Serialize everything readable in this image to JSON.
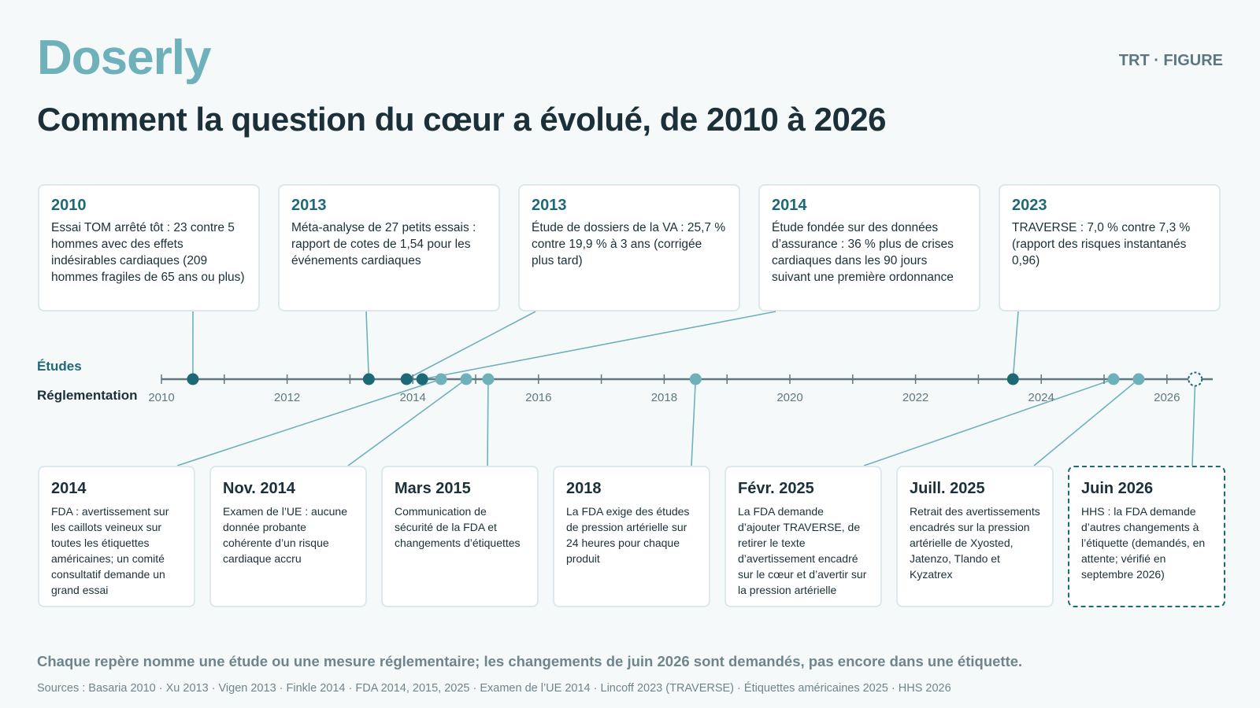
{
  "brand": "Doserly",
  "tag": "TRT · FIGURE",
  "title": "Comment la question du cœur a évolué, de 2010 à 2026",
  "lanes": {
    "studies": "Études",
    "regulation": "Réglementation"
  },
  "axis": {
    "years": [
      "2010",
      "2012",
      "2014",
      "2016",
      "2018",
      "2020",
      "2022",
      "2024",
      "2026"
    ]
  },
  "studies": [
    {
      "label": "2010",
      "text": "Essai TOM arrêté tôt : 23 contre 5 hommes avec des effets indésirables cardiaques (209 hommes fragiles de 65 ans ou plus)",
      "date": 2010.5
    },
    {
      "label": "2013",
      "text": "Méta-analyse de 27 petits essais : rapport de cotes de 1,54 pour les événements cardiaques",
      "date": 2013.3
    },
    {
      "label": "2013",
      "text": "Étude de dossiers de la VA : 25,7 % contre 19,9 % à 3 ans (corrigée plus tard)",
      "date": 2013.9
    },
    {
      "label": "2014",
      "text": "Étude fondée sur des données d’assurance : 36 % plus de crises cardiaques dans les 90 jours suivant une première ordonnance",
      "date": 2014.15
    },
    {
      "label": "2023",
      "text": "TRAVERSE : 7,0 % contre 7,3 % (rapport des risques instantanés 0,96)",
      "date": 2023.55
    }
  ],
  "regulation": [
    {
      "label": "2014",
      "text": "FDA : avertissement sur les caillots veineux sur toutes les étiquettes américaines; un comité consultatif demande un grand essai",
      "date": 2014.45,
      "pending": false
    },
    {
      "label": "Nov. 2014",
      "text": "Examen de l’UE : aucune donnée probante cohérente d’un risque cardiaque accru",
      "date": 2014.85,
      "pending": false
    },
    {
      "label": "Mars 2015",
      "text": "Communication de sécurité de la FDA et changements d’étiquettes",
      "date": 2015.2,
      "pending": false
    },
    {
      "label": "2018",
      "text": "La FDA exige des études de pression artérielle sur 24 heures pour chaque produit",
      "date": 2018.5,
      "pending": false
    },
    {
      "label": "Févr. 2025",
      "text": "La FDA demande d’ajouter TRAVERSE, de retirer le texte d’avertissement encadré sur le cœur et d’avertir sur la pression artérielle",
      "date": 2025.15,
      "pending": false
    },
    {
      "label": "Juill. 2025",
      "text": "Retrait des avertissements encadrés sur la pression artérielle de Xyosted, Jatenzo, Tlando et Kyzatrex",
      "date": 2025.55,
      "pending": false
    },
    {
      "label": "Juin 2026",
      "text": "HHS : la FDA demande d’autres changements à l’étiquette (demandés, en attente; vérifié en septembre 2026)",
      "date": 2026.45,
      "pending": true
    }
  ],
  "colors": {
    "study": "#1d6975",
    "regulation": "#6fb1bb",
    "axis": "#5f7880"
  },
  "note": "Chaque repère nomme une étude ou une mesure réglementaire; les changements de juin 2026 sont demandés, pas encore dans une étiquette.",
  "sources": "Sources : Basaria 2010 · Xu 2013 · Vigen 2013 · Finkle 2014 · FDA 2014, 2015, 2025 · Examen de l’UE 2014 · Lincoff 2023 (TRAVERSE) · Étiquettes américaines 2025 · HHS 2026"
}
